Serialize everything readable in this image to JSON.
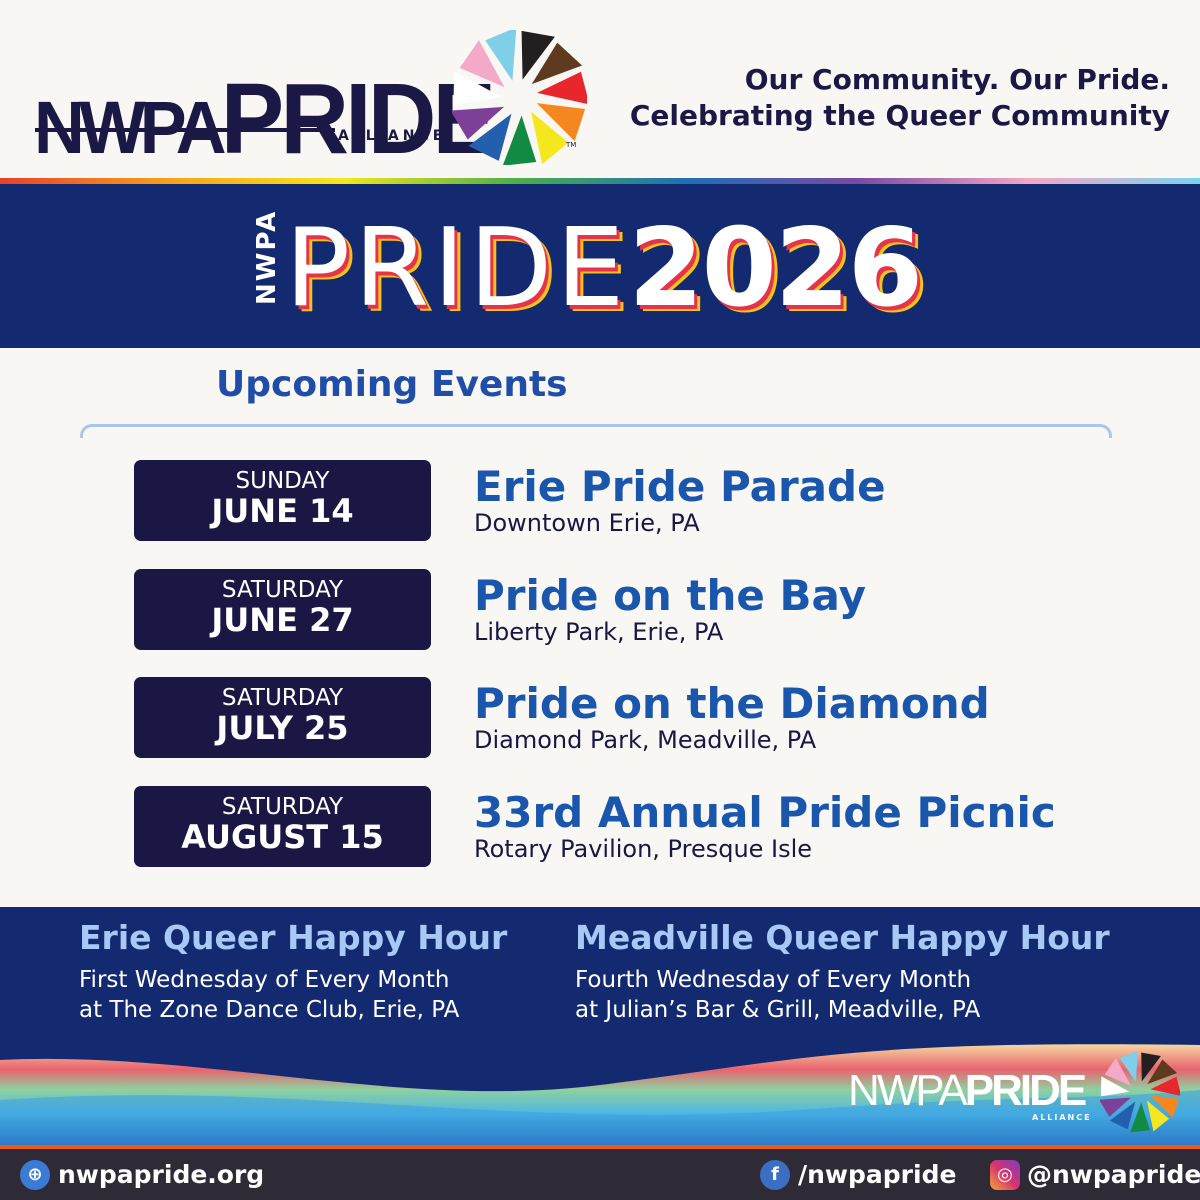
{
  "header": {
    "logo_text_left": "NWPA",
    "logo_text_right": "PRIDE",
    "logo_sub": "ALLIANCE",
    "trademark": "TM",
    "tagline_1": "Our Community. Our Pride.",
    "tagline_2": "Celebrating the Queer Community"
  },
  "banner": {
    "prefix": "NWPA",
    "title": "PRIDE",
    "year": "2026"
  },
  "events_section": {
    "title": "Upcoming Events"
  },
  "events": [
    {
      "day": "SUNDAY",
      "date": "JUNE 14",
      "title": "Erie Pride Parade",
      "location": "Downtown Erie, PA"
    },
    {
      "day": "SATURDAY",
      "date": "JUNE 27",
      "title": "Pride on the Bay",
      "location": "Liberty Park, Erie, PA"
    },
    {
      "day": "SATURDAY",
      "date": "JULY 25",
      "title": "Pride on the Diamond",
      "location": "Diamond Park, Meadville, PA"
    },
    {
      "day": "SATURDAY",
      "date": "AUGUST 15",
      "title": "33rd Annual Pride Picnic",
      "location": "Rotary Pavilion, Presque Isle"
    }
  ],
  "happy_hours": [
    {
      "title": "Erie Queer Happy Hour",
      "line1": "First Wednesday of Every Month",
      "line2": "at The Zone Dance Club, Erie, PA"
    },
    {
      "title": "Meadville Queer Happy Hour",
      "line1": "Fourth Wednesday of Every Month",
      "line2": "at Julian’s Bar & Grill, Meadville, PA"
    }
  ],
  "footer": {
    "website": "nwpapride.org",
    "facebook": "/nwpapride",
    "instagram": "@nwpapride",
    "website_icon": "globe-icon",
    "facebook_icon": "facebook-icon",
    "instagram_icon": "instagram-icon"
  },
  "colors": {
    "navy": "#132a70",
    "dark_navy": "#1a1744",
    "event_blue": "#1b56ad",
    "accent_orange": "#f05a16"
  }
}
